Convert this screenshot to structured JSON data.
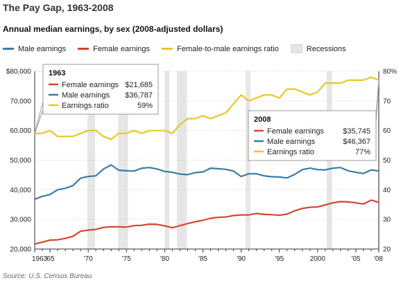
{
  "title": "The Pay Gap, 1963-2008",
  "subtitle": "Annual median earnings, by sex (2008-adjusted dollars)",
  "legend": {
    "male": "Male earnings",
    "female": "Female earnings",
    "ratio": "Female-to-male earnings ratio",
    "recessions": "Recessions"
  },
  "source": "Source: U.S. Census Bureau",
  "colors": {
    "male": "#3a7ca5",
    "female": "#d2452e",
    "ratio": "#e9c62a",
    "recession": "#e6e6e6"
  },
  "callouts": [
    {
      "year": "1963",
      "rows": [
        {
          "series": "female",
          "label": "Female earnings",
          "value": "$21,685"
        },
        {
          "series": "male",
          "label": "Male earnings",
          "value": "$36,787"
        },
        {
          "series": "ratio",
          "label": "Earnings ratio",
          "value": "59%"
        }
      ]
    },
    {
      "year": "2008",
      "rows": [
        {
          "series": "female",
          "label": "Female earnings",
          "value": "$35,745"
        },
        {
          "series": "male",
          "label": "Male earnings",
          "value": "$46,367"
        },
        {
          "series": "ratio",
          "label": "Earnings ratio",
          "value": "77%"
        }
      ]
    }
  ],
  "chart_data": {
    "type": "line",
    "title": "The Pay Gap, 1963-2008",
    "subtitle": "Annual median earnings, by sex (2008-adjusted dollars)",
    "x": [
      1963,
      1964,
      1965,
      1966,
      1967,
      1968,
      1969,
      1970,
      1971,
      1972,
      1973,
      1974,
      1975,
      1976,
      1977,
      1978,
      1979,
      1980,
      1981,
      1982,
      1983,
      1984,
      1985,
      1986,
      1987,
      1988,
      1989,
      1990,
      1991,
      1992,
      1993,
      1994,
      1995,
      1996,
      1997,
      1998,
      1999,
      2000,
      2001,
      2002,
      2003,
      2004,
      2005,
      2006,
      2007,
      2008
    ],
    "xlim": [
      1963,
      2008
    ],
    "x_tick_labels": [
      "1963",
      "'65",
      "'70",
      "'75",
      "'80",
      "'85",
      "'90",
      "'95",
      "2000",
      "'05",
      "'08"
    ],
    "x_tick_years": [
      1963,
      1965,
      1970,
      1975,
      1980,
      1985,
      1990,
      1995,
      2000,
      2005,
      2008
    ],
    "left_axis": {
      "ylim": [
        20000,
        80000
      ],
      "ticks": [
        20000,
        30000,
        40000,
        50000,
        60000,
        70000,
        80000
      ],
      "tick_labels": [
        "20,000",
        "30,000",
        "40,000",
        "50,000",
        "60,000",
        "70,000",
        "$80,000"
      ]
    },
    "right_axis": {
      "ylim": [
        20,
        80
      ],
      "ticks": [
        20,
        30,
        40,
        50,
        60,
        70,
        80
      ],
      "tick_labels": [
        "20",
        "30",
        "40",
        "50",
        "60",
        "70",
        "80%"
      ]
    },
    "series": [
      {
        "name": "Male earnings",
        "key": "male",
        "axis": "left",
        "values": [
          36787,
          37800,
          38400,
          40000,
          40500,
          41400,
          43900,
          44500,
          44700,
          47000,
          48400,
          46600,
          46400,
          46300,
          47300,
          47500,
          47000,
          46200,
          45900,
          45300,
          45100,
          45800,
          46000,
          47300,
          47100,
          46900,
          46300,
          44500,
          45400,
          45400,
          44700,
          44400,
          44300,
          44000,
          45200,
          46800,
          47300,
          46800,
          46700,
          47300,
          47500,
          46400,
          45900,
          45500,
          46700,
          46367
        ]
      },
      {
        "name": "Female earnings",
        "key": "female",
        "axis": "left",
        "values": [
          21685,
          22300,
          23000,
          23100,
          23600,
          24300,
          26000,
          26400,
          26600,
          27300,
          27500,
          27500,
          27400,
          27900,
          28000,
          28400,
          28300,
          27800,
          27200,
          27900,
          28600,
          29200,
          29700,
          30400,
          30700,
          30800,
          31300,
          31500,
          31500,
          32000,
          31700,
          31600,
          31400,
          31800,
          32900,
          33700,
          34100,
          34200,
          34900,
          35600,
          36000,
          35900,
          35600,
          35200,
          36500,
          35745
        ]
      },
      {
        "name": "Female-to-male earnings ratio",
        "key": "ratio",
        "axis": "right",
        "values": [
          59,
          59,
          60,
          58,
          58,
          58,
          59,
          60,
          60,
          58,
          57,
          59,
          59,
          60,
          59,
          60,
          60,
          60,
          59,
          62,
          64,
          64,
          65,
          64,
          65,
          66,
          69,
          72,
          70,
          71,
          72,
          72,
          71,
          74,
          74,
          73,
          72,
          73,
          76,
          76,
          76,
          77,
          77,
          77,
          78,
          77
        ]
      }
    ],
    "recessions": [
      [
        1969.9,
        1970.9
      ],
      [
        1973.9,
        1975.2
      ],
      [
        1980.0,
        1980.6
      ],
      [
        1981.6,
        1982.9
      ],
      [
        1990.6,
        1991.2
      ],
      [
        2001.2,
        2001.9
      ],
      [
        2007.9,
        2008.0
      ]
    ]
  }
}
